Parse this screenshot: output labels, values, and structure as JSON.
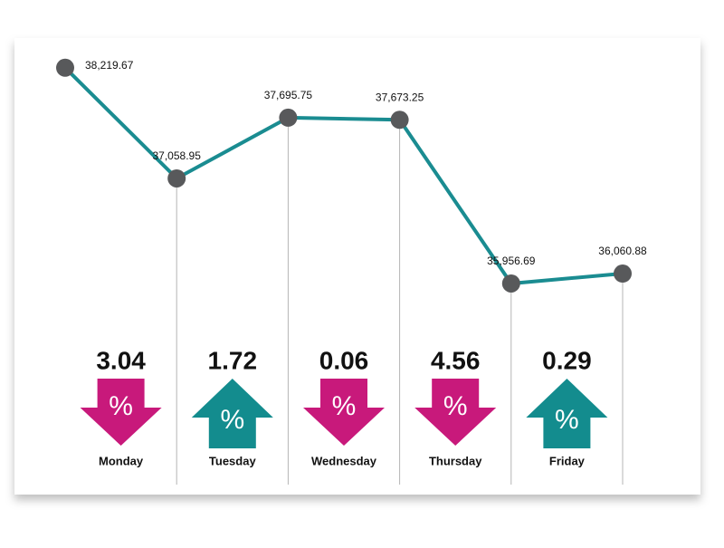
{
  "chart_data": {
    "type": "line",
    "categories": [
      null,
      null,
      null,
      null,
      null,
      null
    ],
    "series": [
      {
        "name": null,
        "color": "#1a8c91",
        "marker_color": "#58595b",
        "values": [
          38219.67,
          37058.95,
          37695.75,
          37673.25,
          35956.69,
          36060.88
        ],
        "value_labels": [
          "38,219.67",
          "37,058.95",
          "37,695.75",
          "37,673.25",
          "35,956.69",
          "36,060.88"
        ]
      }
    ],
    "ylim": [
      35700,
      38550
    ],
    "changes": {
      "days": [
        "Monday",
        "Tuesday",
        "Wednesday",
        "Thursday",
        "Friday"
      ],
      "values": [
        3.04,
        1.72,
        0.06,
        4.56,
        0.29
      ],
      "unit": "%",
      "down_color": "#c8197b",
      "up_color": "#138c8e"
    }
  }
}
